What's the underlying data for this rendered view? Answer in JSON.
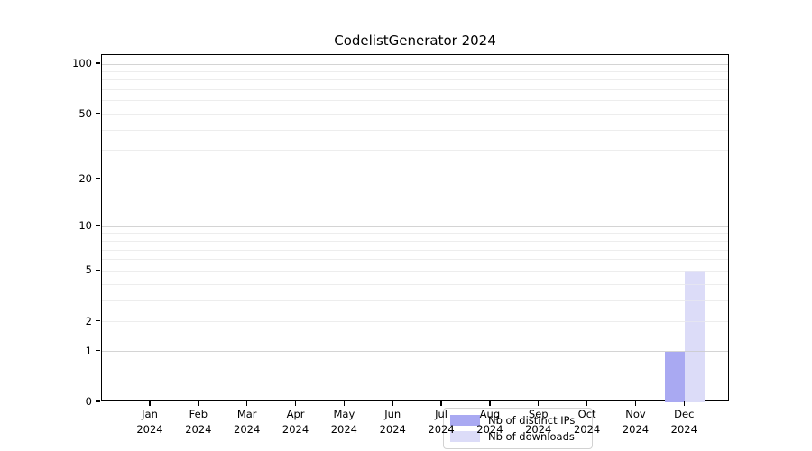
{
  "title": "CodelistGenerator 2024",
  "chart_data": {
    "type": "bar",
    "title": "CodelistGenerator 2024",
    "categories": [
      "Jan 2024",
      "Feb 2024",
      "Mar 2024",
      "Apr 2024",
      "May 2024",
      "Jun 2024",
      "Jul 2024",
      "Aug 2024",
      "Sep 2024",
      "Oct 2024",
      "Nov 2024",
      "Dec 2024"
    ],
    "series": [
      {
        "name": "Nb of distinct IPs",
        "color": "#a9a9f2",
        "values": [
          0,
          0,
          0,
          0,
          0,
          0,
          0,
          0,
          0,
          0,
          0,
          1
        ]
      },
      {
        "name": "Nb of downloads",
        "color": "#dcdcf8",
        "values": [
          0,
          0,
          0,
          0,
          0,
          0,
          0,
          0,
          0,
          0,
          0,
          5
        ]
      }
    ],
    "xlabel": "",
    "ylabel": "",
    "yscale": "log1p",
    "ylim": [
      0,
      113
    ],
    "y_ticks": [
      0,
      1,
      2,
      5,
      10,
      20,
      50,
      100
    ],
    "y_gridlines_major": [
      1,
      10,
      100
    ],
    "y_gridlines_minor": [
      2,
      3,
      4,
      5,
      6,
      7,
      8,
      9,
      20,
      30,
      40,
      50,
      60,
      70,
      80,
      90
    ],
    "grid": "horizontal",
    "legend_position": "lower-center-inside",
    "colors": {
      "axis": "#000000",
      "grid_major": "#c9c9c9",
      "grid_minor": "#ededed",
      "background": "#ffffff"
    }
  }
}
